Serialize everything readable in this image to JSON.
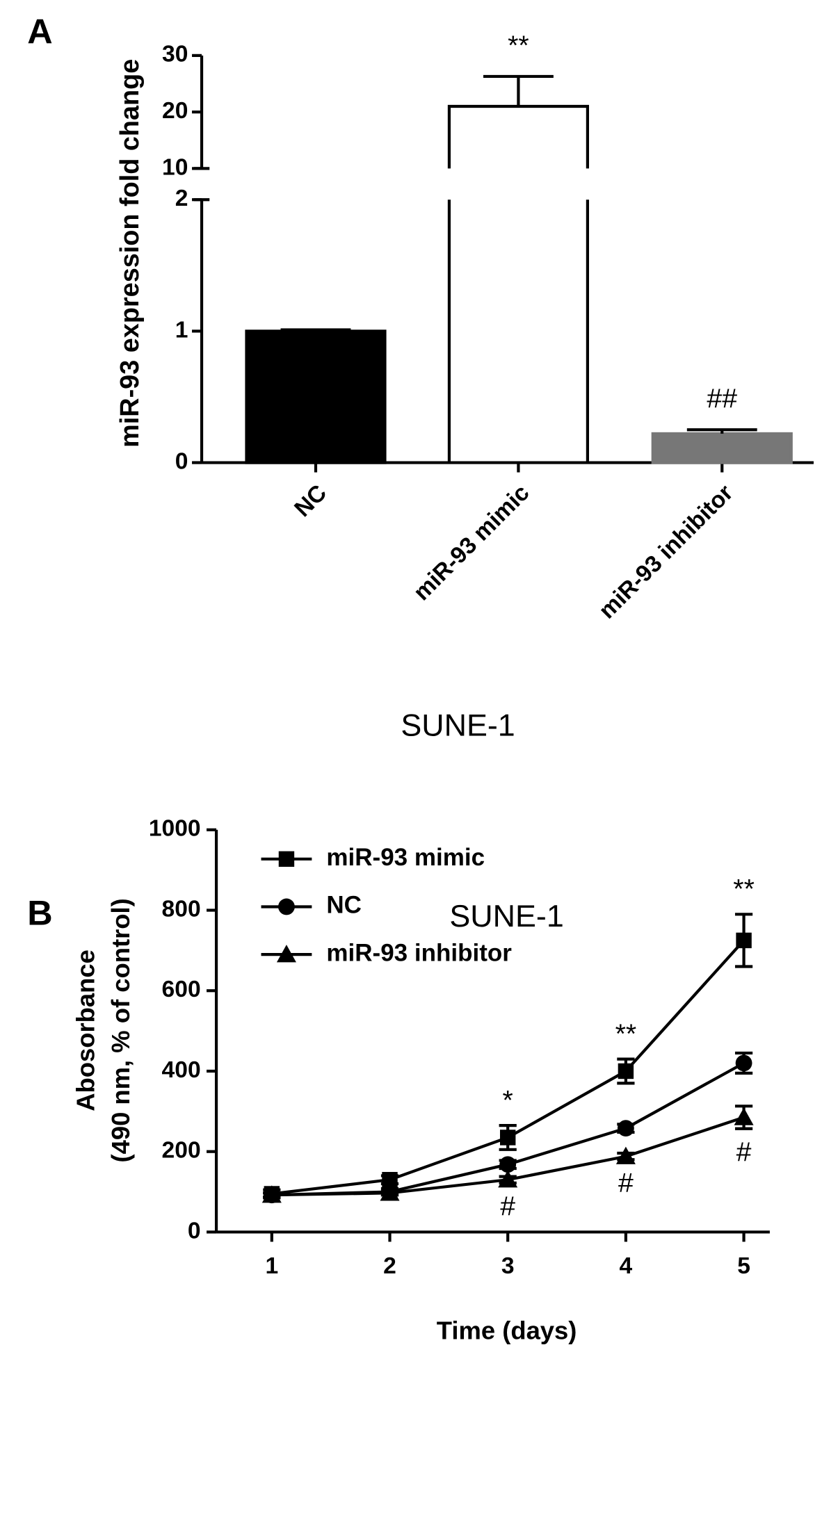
{
  "chart_data": [
    {
      "type": "bar",
      "panel": "A",
      "categories": [
        "NC",
        "miR-93 mimic",
        "miR-93 inhibitor"
      ],
      "values": [
        1,
        21,
        0.22
      ],
      "errors": [
        0.01,
        5.3,
        0.03
      ],
      "colors": [
        "#000000",
        "#ffffff",
        "#777777"
      ],
      "ylabel": "miR-93 expression fold change",
      "xlabel": "SUNE-1",
      "ylim": [
        0,
        30
      ],
      "axis_break": [
        2,
        10
      ],
      "yticks": [
        0,
        1,
        2,
        10,
        20,
        30
      ],
      "annotations": [
        {
          "text": "**",
          "category": 1
        },
        {
          "text": "##",
          "category": 2
        }
      ]
    },
    {
      "type": "line",
      "panel": "B",
      "title": "SUNE-1",
      "xlabel": "Time (days)",
      "ylabel": [
        "Abosorbance",
        "(490 nm, % of control)"
      ],
      "x": [
        1,
        2,
        3,
        4,
        5
      ],
      "xlim": [
        0.53,
        5.22
      ],
      "xticks": [
        1,
        2,
        3,
        4,
        5
      ],
      "ylim": [
        0,
        1000
      ],
      "yticks": [
        0,
        200,
        400,
        600,
        800,
        1000
      ],
      "legend": "upper left",
      "series": [
        {
          "name": "miR-93 mimic",
          "color": "#000000",
          "marker": "square",
          "values": [
            95,
            130,
            235,
            400,
            725
          ],
          "errors": [
            10,
            10,
            30,
            30,
            65
          ]
        },
        {
          "name": "NC",
          "color": "#000000",
          "marker": "circle",
          "values": [
            92,
            100,
            168,
            258,
            420
          ],
          "errors": [
            5,
            8,
            10,
            10,
            25
          ]
        },
        {
          "name": "miR-93 inhibitor",
          "color": "#000000",
          "marker": "triangle",
          "values": [
            92,
            97,
            130,
            188,
            285
          ],
          "errors": [
            5,
            5,
            8,
            8,
            28
          ]
        }
      ],
      "annotations": [
        {
          "text": "*",
          "x": 3,
          "series": 0,
          "position": "above"
        },
        {
          "text": "**",
          "x": 4,
          "series": 0,
          "position": "above"
        },
        {
          "text": "**",
          "x": 5,
          "series": 0,
          "position": "above"
        },
        {
          "text": "#",
          "x": 3,
          "series": 2,
          "position": "below"
        },
        {
          "text": "#",
          "x": 4,
          "series": 2,
          "position": "below"
        },
        {
          "text": "#",
          "x": 5,
          "series": 2,
          "position": "below"
        }
      ]
    }
  ]
}
